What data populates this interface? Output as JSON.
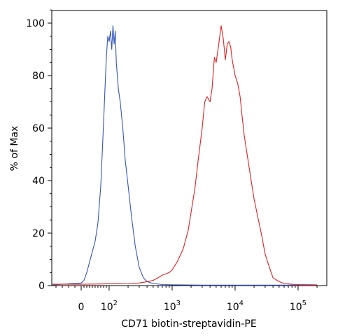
{
  "chart_data": {
    "type": "line",
    "title": "",
    "xlabel": "CD71 biotin-streptavidin-PE",
    "ylabel": "% of Max",
    "xscale": "biexponential",
    "xlim": [
      -60,
      200000
    ],
    "ylim": [
      0,
      105
    ],
    "grid": false,
    "legend": "none",
    "x_ticks": [
      {
        "value": 0,
        "base": "0",
        "exp": ""
      },
      {
        "value": 100,
        "base": "10",
        "exp": "2"
      },
      {
        "value": 1000,
        "base": "10",
        "exp": "3"
      },
      {
        "value": 10000,
        "base": "10",
        "exp": "4"
      },
      {
        "value": 100000,
        "base": "10",
        "exp": "5"
      }
    ],
    "y_ticks": [
      {
        "value": 0,
        "label": "0"
      },
      {
        "value": 20,
        "label": "20"
      },
      {
        "value": 40,
        "label": "40"
      },
      {
        "value": 60,
        "label": "60"
      },
      {
        "value": 80,
        "label": "80"
      },
      {
        "value": 100,
        "label": "100"
      }
    ],
    "series": [
      {
        "color": "#3355bb",
        "x": [
          -60,
          -30,
          0,
          10,
          20,
          30,
          40,
          50,
          60,
          70,
          75,
          80,
          85,
          90,
          95,
          100,
          105,
          110,
          115,
          120,
          125,
          130,
          140,
          150,
          165,
          180,
          200,
          230,
          260,
          300,
          350,
          400,
          500,
          700,
          1000,
          3000,
          10000,
          100000,
          200000
        ],
        "y": [
          0.3,
          0.5,
          1,
          2,
          5,
          9,
          13,
          17,
          24,
          38,
          50,
          62,
          75,
          87,
          95,
          93,
          97,
          90,
          99,
          92,
          97,
          85,
          75,
          70,
          60,
          48,
          38,
          25,
          15,
          7,
          3,
          1.5,
          0.8,
          0.4,
          0.3,
          0.2,
          0.2,
          0.2,
          0.2
        ]
      },
      {
        "color": "#dd2222",
        "x": [
          -60,
          0,
          100,
          200,
          300,
          400,
          500,
          600,
          700,
          800,
          900,
          1000,
          1200,
          1500,
          1800,
          2000,
          2300,
          2600,
          3000,
          3300,
          3600,
          4000,
          4300,
          4700,
          5000,
          5500,
          6000,
          6500,
          7000,
          7500,
          8000,
          8500,
          9000,
          10000,
          11000,
          12000,
          13000,
          14000,
          16000,
          18000,
          20000,
          23000,
          26000,
          30000,
          35000,
          40000,
          50000,
          60000,
          80000,
          100000,
          200000
        ],
        "y": [
          0.5,
          0.5,
          0.7,
          0.8,
          1,
          1.5,
          2,
          3,
          4,
          4.5,
          5,
          6,
          9,
          14,
          21,
          28,
          37,
          48,
          60,
          70,
          72,
          70,
          75,
          87,
          85,
          92,
          99,
          94,
          86,
          92,
          93,
          91,
          86,
          80,
          77,
          72,
          64,
          57,
          48,
          40,
          33,
          26,
          20,
          12,
          7,
          3,
          1.5,
          0.8,
          0.5,
          0.4,
          0.3
        ]
      }
    ]
  }
}
